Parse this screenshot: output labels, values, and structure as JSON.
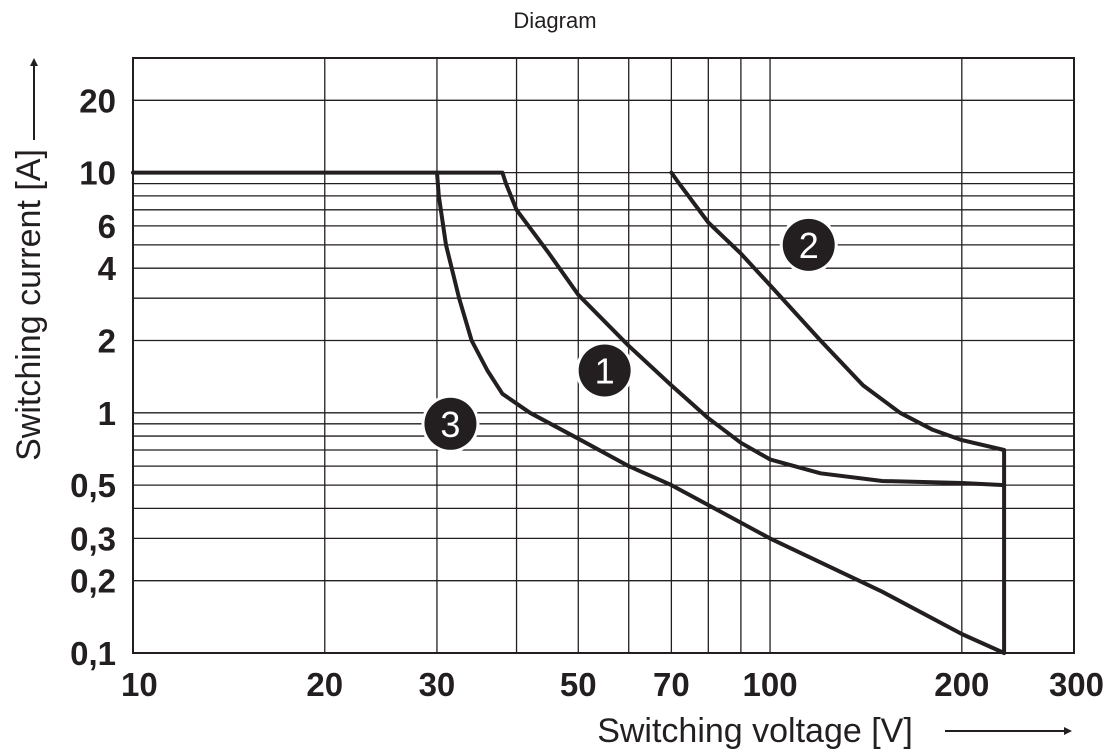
{
  "header": {
    "title": "Diagram"
  },
  "chart_data": {
    "type": "line",
    "title": "Diagram",
    "xlabel": "Switching voltage [V]",
    "ylabel": "Switching current [A]",
    "xscale": "log",
    "yscale": "log",
    "xlim": [
      10,
      300
    ],
    "ylim": [
      0.1,
      30
    ],
    "grid": true,
    "x_ticks": [
      10,
      20,
      30,
      50,
      70,
      100,
      200,
      300
    ],
    "x_tick_labels": [
      "10",
      "20",
      "30",
      "50",
      "70",
      "100",
      "200",
      "300"
    ],
    "x_grid": [
      20,
      30,
      40,
      50,
      60,
      70,
      80,
      90,
      100,
      200
    ],
    "y_ticks": [
      0.1,
      0.2,
      0.3,
      0.5,
      1,
      2,
      4,
      6,
      10,
      20
    ],
    "y_tick_labels": [
      "0,1",
      "0,2",
      "0,3",
      "0,5",
      "1",
      "2",
      "4",
      "6",
      "10",
      "20"
    ],
    "y_grid": [
      0.2,
      0.3,
      0.4,
      0.5,
      0.6,
      0.7,
      0.8,
      0.9,
      1,
      2,
      3,
      4,
      5,
      6,
      7,
      8,
      9,
      10,
      20
    ],
    "series": [
      {
        "name": "1",
        "points": [
          [
            10,
            10
          ],
          [
            38,
            10
          ],
          [
            38.5,
            9
          ],
          [
            40,
            7
          ],
          [
            45,
            4.6
          ],
          [
            50,
            3.1
          ],
          [
            60,
            1.9
          ],
          [
            70,
            1.3
          ],
          [
            80,
            0.95
          ],
          [
            90,
            0.75
          ],
          [
            100,
            0.64
          ],
          [
            120,
            0.56
          ],
          [
            150,
            0.52
          ],
          [
            200,
            0.51
          ],
          [
            233,
            0.5
          ]
        ]
      },
      {
        "name": "2",
        "points": [
          [
            70,
            10
          ],
          [
            72,
            9
          ],
          [
            80,
            6.2
          ],
          [
            90,
            4.6
          ],
          [
            100,
            3.4
          ],
          [
            120,
            2.0
          ],
          [
            140,
            1.3
          ],
          [
            160,
            1.0
          ],
          [
            180,
            0.85
          ],
          [
            200,
            0.77
          ],
          [
            233,
            0.7
          ],
          [
            233,
            0.5
          ]
        ]
      },
      {
        "name": "3",
        "points": [
          [
            30,
            10
          ],
          [
            30.2,
            8
          ],
          [
            31,
            5
          ],
          [
            32.5,
            3
          ],
          [
            34,
            2
          ],
          [
            36,
            1.5
          ],
          [
            38,
            1.2
          ],
          [
            42,
            1.0
          ],
          [
            50,
            0.78
          ],
          [
            60,
            0.6
          ],
          [
            70,
            0.5
          ],
          [
            100,
            0.3
          ],
          [
            150,
            0.18
          ],
          [
            200,
            0.12
          ],
          [
            233,
            0.1
          ],
          [
            233,
            0.5
          ]
        ]
      }
    ],
    "markers": [
      {
        "label": "1",
        "x": 55,
        "y": 1.5
      },
      {
        "label": "2",
        "x": 115,
        "y": 5.0
      },
      {
        "label": "3",
        "x": 31.5,
        "y": 0.9
      }
    ]
  }
}
